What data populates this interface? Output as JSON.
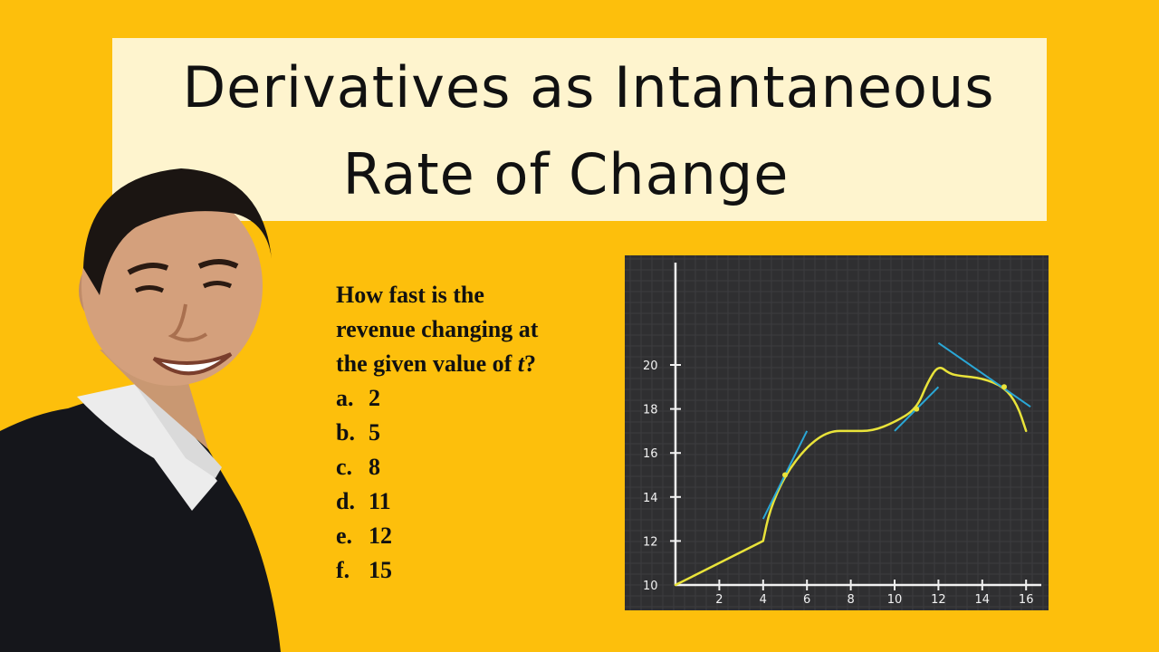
{
  "title": {
    "line1": "Derivatives as Intantaneous",
    "line2": "Rate of Change"
  },
  "question": {
    "text_lines": [
      "How fast is the",
      "revenue changing at",
      "the given value of "
    ],
    "variable": "t",
    "suffix": "?",
    "options": [
      {
        "letter": "a.",
        "value": "2"
      },
      {
        "letter": "b.",
        "value": "5"
      },
      {
        "letter": "c.",
        "value": "8"
      },
      {
        "letter": "d.",
        "value": "11"
      },
      {
        "letter": "e.",
        "value": "12"
      },
      {
        "letter": "f.",
        "value": "15"
      }
    ]
  },
  "chart_data": {
    "type": "line",
    "background": "#2F2F31",
    "grid": true,
    "curve_color": "#E9E33A",
    "tangent_color": "#2AA7D6",
    "x_ticks": [
      "2",
      "4",
      "6",
      "8",
      "10",
      "12",
      "14",
      "16"
    ],
    "y_ticks": [
      "10",
      "12",
      "14",
      "16",
      "18",
      "20"
    ],
    "xlim": [
      0,
      16.5
    ],
    "ylim": [
      10,
      21.5
    ],
    "curve": [
      [
        0,
        10
      ],
      [
        4,
        12
      ],
      [
        4.3,
        13.4
      ],
      [
        5,
        15
      ],
      [
        6,
        16.3
      ],
      [
        7,
        17
      ],
      [
        8,
        17
      ],
      [
        9,
        17
      ],
      [
        10,
        17.4
      ],
      [
        11,
        18
      ],
      [
        11.5,
        19.2
      ],
      [
        12,
        20
      ],
      [
        12.5,
        19.6
      ],
      [
        13,
        19.5
      ],
      [
        14,
        19.4
      ],
      [
        15,
        19
      ],
      [
        15.6,
        18.2
      ],
      [
        16,
        17
      ]
    ],
    "tangent_points": [
      {
        "x": 5,
        "y": 15
      },
      {
        "x": 11,
        "y": 18
      },
      {
        "x": 15,
        "y": 19
      }
    ],
    "tangent_lines": [
      {
        "x1": 4,
        "y1": 13,
        "x2": 6,
        "y2": 17
      },
      {
        "x1": 10,
        "y1": 17,
        "x2": 12,
        "y2": 19
      },
      {
        "x1": 12,
        "y1": 21,
        "x2": 16.2,
        "y2": 18.1
      }
    ]
  }
}
